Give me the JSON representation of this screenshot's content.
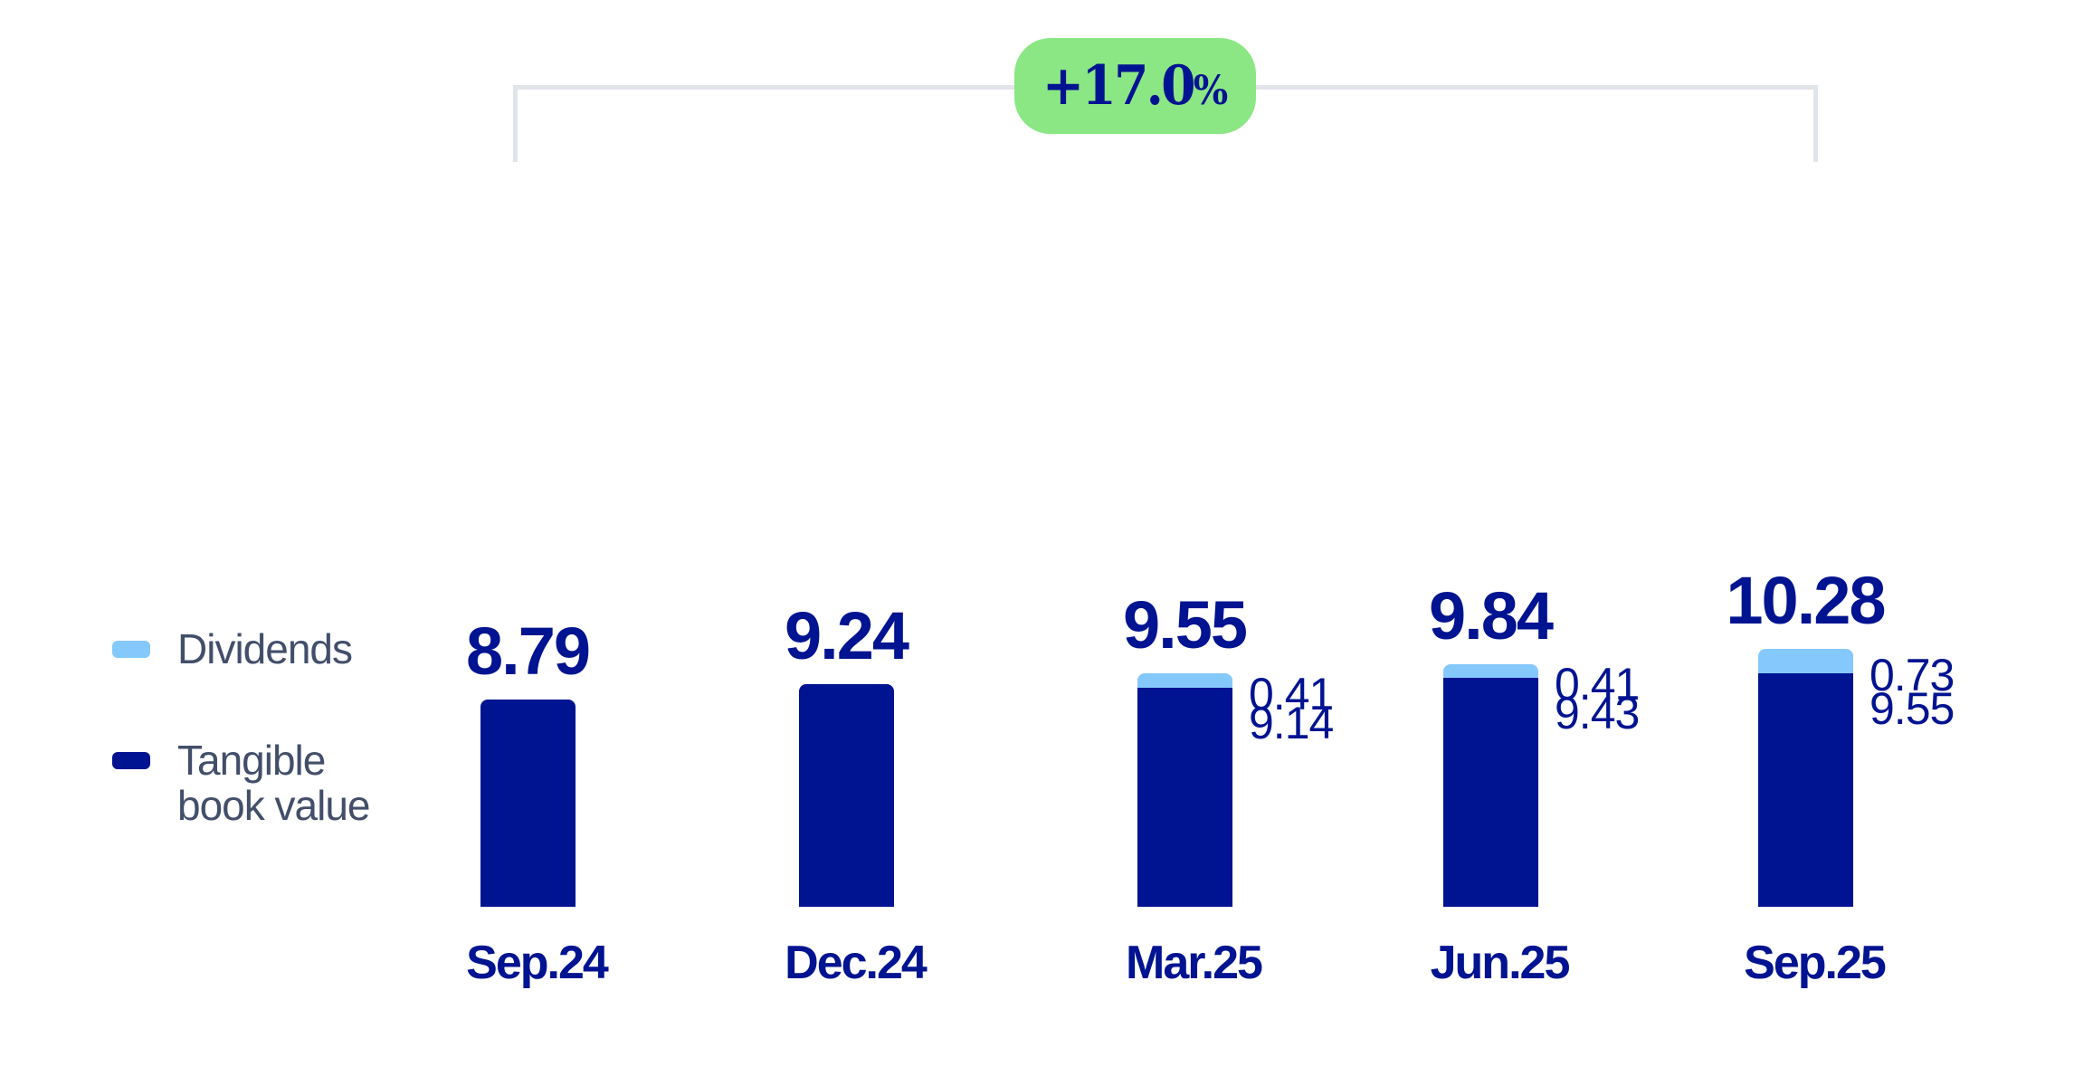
{
  "chart_data": {
    "type": "bar",
    "stacked": true,
    "title": "",
    "xlabel": "",
    "ylabel": "",
    "categories": [
      "Sep.24",
      "Dec.24",
      "Mar.25",
      "Jun.25",
      "Sep.25"
    ],
    "series": [
      {
        "name": "Tangible book value",
        "color": "#001391",
        "values": [
          8.79,
          9.24,
          9.14,
          9.43,
          9.55
        ]
      },
      {
        "name": "Dividends",
        "color": "#85c8fb",
        "values": [
          0,
          0,
          0.41,
          0.41,
          0.73
        ]
      }
    ],
    "totals": [
      "8.79",
      "9.24",
      "9.55",
      "9.84",
      "10.28"
    ],
    "segment_labels": {
      "dividends": [
        null,
        null,
        "0.41",
        "0.41",
        "0.73"
      ],
      "tangible_book_value": [
        null,
        null,
        "9.14",
        "9.43",
        "9.55"
      ]
    },
    "annotation": {
      "text": "+17.0",
      "suffix": "%",
      "from": "Sep.24",
      "to": "Sep.25"
    },
    "legend": {
      "position": "left",
      "entries": [
        "Dividends",
        "Tangible book value"
      ]
    },
    "grid": false
  },
  "legend": {
    "dividends": {
      "label": "Dividends",
      "color": "#85c8fb"
    },
    "tbv": {
      "line1": "Tangible",
      "line2": "book value",
      "color": "#001391"
    }
  },
  "growth_badge": {
    "value": "+17.0",
    "suffix": "%"
  },
  "colors": {
    "dividends": "#85c8fb",
    "tbv": "#001391",
    "badge": "#8be784",
    "bracket": "#e1e4e9",
    "legend_text": "#424e6a"
  }
}
